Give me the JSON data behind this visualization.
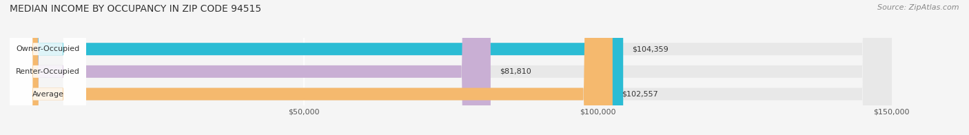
{
  "title": "MEDIAN INCOME BY OCCUPANCY IN ZIP CODE 94515",
  "source": "Source: ZipAtlas.com",
  "categories": [
    "Owner-Occupied",
    "Renter-Occupied",
    "Average"
  ],
  "values": [
    104359,
    81810,
    102557
  ],
  "labels": [
    "$104,359",
    "$81,810",
    "$102,557"
  ],
  "bar_colors": [
    "#2bbcd4",
    "#c9afd4",
    "#f5b96e"
  ],
  "bar_bg_color": "#e8e8e8",
  "xlim": [
    0,
    150000
  ],
  "xticks": [
    50000,
    100000,
    150000
  ],
  "xtick_labels": [
    "$50,000",
    "$100,000",
    "$150,000"
  ],
  "figsize": [
    14.06,
    1.96
  ],
  "dpi": 100,
  "title_fontsize": 10,
  "source_fontsize": 8,
  "bar_height": 0.55,
  "bg_color": "#f5f5f5",
  "grid_color": "#ffffff",
  "tick_fontsize": 8
}
